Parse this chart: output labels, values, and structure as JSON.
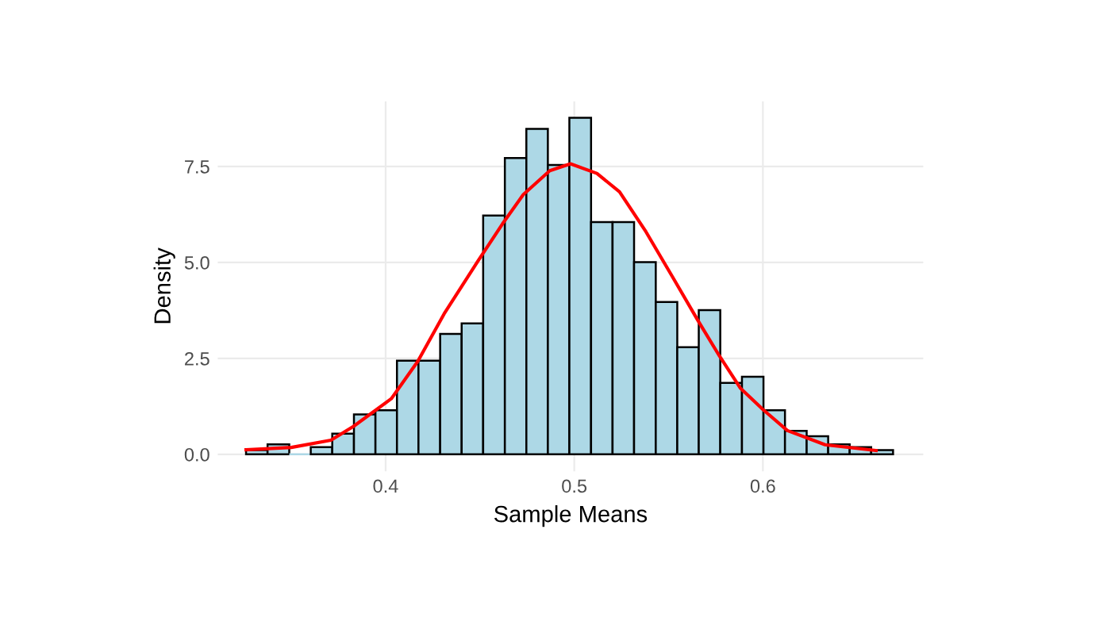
{
  "chart_data": {
    "type": "histogram",
    "xlabel": "Sample Means",
    "ylabel": "Density",
    "bins": [
      0.326,
      0.3374,
      0.3489,
      0.3603,
      0.3717,
      0.3832,
      0.3946,
      0.406,
      0.4174,
      0.4289,
      0.4403,
      0.4517,
      0.4632,
      0.4746,
      0.486,
      0.4974,
      0.5089,
      0.5203,
      0.5317,
      0.5432,
      0.5546,
      0.566,
      0.5774,
      0.5889,
      0.6003,
      0.6117,
      0.6232,
      0.6346,
      0.646,
      0.6574,
      0.669
    ],
    "values": [
      0.11,
      0.26,
      0,
      0.19,
      0.54,
      1.04,
      1.15,
      2.44,
      2.44,
      3.14,
      3.41,
      6.22,
      7.72,
      8.48,
      7.54,
      8.77,
      6.05,
      6.05,
      5.01,
      3.97,
      2.79,
      3.76,
      1.86,
      2.02,
      1.15,
      0.61,
      0.47,
      0.26,
      0.19,
      0.11
    ],
    "color": "#add8e6",
    "series": [
      {
        "type": "line",
        "color": "#ff0000",
        "x": [
          0.326,
          0.35,
          0.371,
          0.383,
          0.403,
          0.417,
          0.431,
          0.449,
          0.462,
          0.473,
          0.487,
          0.498,
          0.512,
          0.524,
          0.538,
          0.552,
          0.566,
          0.577,
          0.588,
          0.6,
          0.613,
          0.633,
          0.66
        ],
        "values": [
          0.12,
          0.18,
          0.37,
          0.73,
          1.45,
          2.42,
          3.66,
          5.04,
          6.01,
          6.77,
          7.39,
          7.57,
          7.32,
          6.84,
          5.8,
          4.63,
          3.45,
          2.56,
          1.73,
          1.17,
          0.62,
          0.25,
          0.1
        ]
      }
    ],
    "xlim": [
      0.311,
      0.685
    ],
    "xticks": [
      0.4,
      0.5,
      0.6
    ],
    "ylim": [
      -0.44,
      9.2
    ],
    "yticks": [
      {
        "value": 0,
        "label": "0.0"
      },
      2.5,
      {
        "value": 5,
        "label": "5.0"
      },
      7.5
    ],
    "grid": true
  }
}
